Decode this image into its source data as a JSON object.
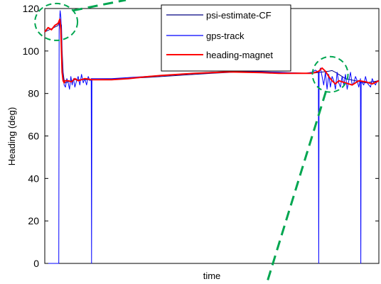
{
  "chart_data": {
    "type": "line",
    "title": "",
    "xlabel": "time",
    "ylabel": "Heading (deg)",
    "ylim": [
      0,
      120
    ],
    "xlim": [
      0,
      1000
    ],
    "yticks": [
      0,
      20,
      40,
      60,
      80,
      100,
      120
    ],
    "grid": false,
    "legend_position": "top-right",
    "series": [
      {
        "name": "psi-estimate-CF",
        "color": "#000080",
        "x": [
          0,
          40,
          42,
          45,
          47,
          50,
          52,
          55,
          58,
          62,
          70,
          80,
          90,
          100,
          120,
          150,
          200,
          300,
          400,
          500,
          600,
          700,
          800,
          850,
          860,
          870,
          900,
          930,
          960,
          1000
        ],
        "y": [
          109,
          112,
          113,
          113.5,
          114,
          112,
          100,
          90,
          86,
          85,
          85.5,
          86,
          86.5,
          86.5,
          86.5,
          86.5,
          86.8,
          87.5,
          88.5,
          89.5,
          90.3,
          89.8,
          89.5,
          90.5,
          90.8,
          90,
          87,
          86,
          85,
          86
        ]
      },
      {
        "name": "gps-track",
        "color": "#0000ff",
        "x": [
          0,
          40,
          42,
          43,
          44,
          46,
          48,
          50,
          52,
          55,
          58,
          62,
          66,
          70,
          74,
          78,
          82,
          86,
          90,
          95,
          100,
          105,
          110,
          115,
          120,
          125,
          130,
          135,
          139,
          140,
          141,
          145,
          200,
          300,
          400,
          500,
          600,
          700,
          780,
          800,
          810,
          819,
          820,
          821,
          825,
          830,
          835,
          840,
          845,
          850,
          855,
          860,
          865,
          870,
          875,
          880,
          885,
          890,
          895,
          900,
          905,
          910,
          915,
          920,
          925,
          930,
          935,
          940,
          945,
          946,
          947,
          950,
          955,
          960,
          965,
          970,
          975,
          980,
          985,
          990,
          995,
          1000
        ],
        "y": [
          0,
          0,
          0,
          110,
          114,
          119,
          116,
          108,
          95,
          88,
          84,
          83,
          87,
          85,
          82,
          88,
          84,
          87,
          83,
          86,
          88,
          84,
          89,
          85,
          87,
          84,
          88,
          86,
          87,
          0,
          87,
          87,
          87,
          88,
          89,
          90,
          90.5,
          90,
          89.5,
          90,
          91,
          90,
          0,
          90,
          92,
          88,
          84,
          90,
          82,
          89,
          83,
          88,
          86,
          82,
          90,
          85,
          83,
          88,
          84,
          89,
          82,
          86,
          90,
          84,
          85,
          88,
          86,
          83,
          87,
          0,
          86,
          85,
          84,
          88,
          85,
          84,
          83,
          87,
          85,
          84,
          86,
          86
        ]
      },
      {
        "name": "heading-magnet",
        "color": "#ff0000",
        "x": [
          0,
          10,
          20,
          30,
          40,
          45,
          48,
          50,
          52,
          55,
          58,
          60,
          70,
          80,
          90,
          100,
          120,
          140,
          160,
          200,
          250,
          300,
          350,
          400,
          450,
          500,
          550,
          600,
          650,
          700,
          750,
          800,
          820,
          830,
          840,
          850,
          860,
          870,
          880,
          900,
          920,
          940,
          960,
          980,
          1000
        ],
        "y": [
          109,
          111,
          110,
          112,
          113,
          115,
          110,
          100,
          90,
          86,
          85,
          86,
          86,
          85.5,
          87,
          86,
          87,
          86.5,
          86.5,
          86.5,
          87,
          87.8,
          88.5,
          89,
          89.5,
          89.8,
          90.2,
          90,
          89.8,
          89.5,
          89.5,
          89.5,
          90.5,
          92,
          90.5,
          88,
          86,
          84.5,
          86,
          85,
          84,
          86,
          85.5,
          84.5,
          86
        ]
      }
    ]
  },
  "callouts": [
    {
      "type": "dashed-ellipse",
      "color": "#00a650",
      "target_x": 30,
      "target_y": 112
    },
    {
      "type": "dashed-ellipse",
      "color": "#00a650",
      "target_x": 865,
      "target_y": 88
    }
  ]
}
